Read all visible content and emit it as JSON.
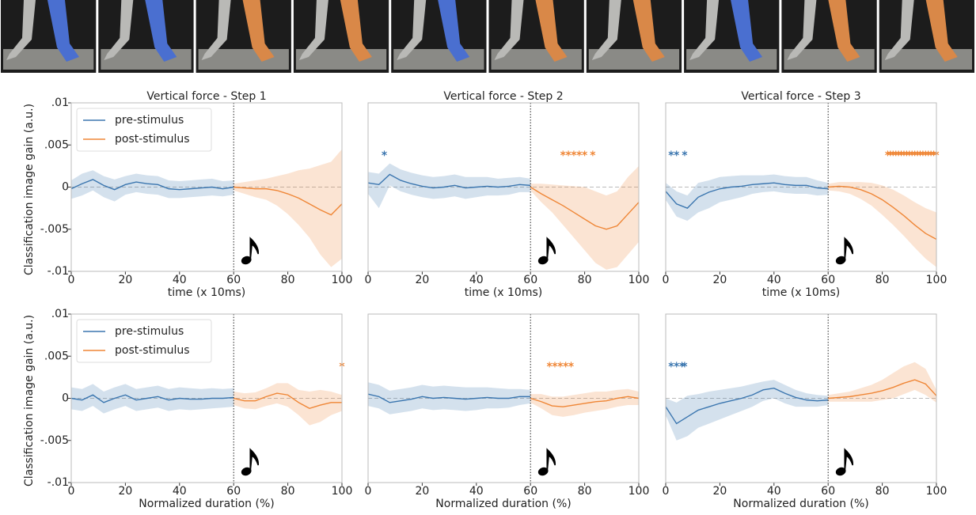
{
  "chart_data": [
    {
      "type": "line",
      "title": "Vertical force - Step 1",
      "xlabel": "time (x 10ms)",
      "ylabel": "Classification image gain (a.u.)",
      "xlim": [
        0,
        100
      ],
      "xticks": [
        0,
        20,
        40,
        60,
        80,
        100
      ],
      "ylim": [
        -0.01,
        0.01
      ],
      "yticks": [
        {
          "value": 0.01,
          "label": ".01"
        },
        {
          "value": 0.005,
          "label": ".005"
        },
        0,
        {
          "value": -0.005,
          "label": "-.005"
        },
        {
          "value": -0.01,
          "label": "-.01"
        }
      ],
      "legend": "upper left",
      "stimulus_x": 60,
      "zero_line": true,
      "series": [
        {
          "name": "pre-stimulus",
          "color": "#3b76af",
          "x": [
            0,
            4,
            8,
            12,
            16,
            20,
            24,
            28,
            32,
            36,
            40,
            44,
            48,
            52,
            56,
            60
          ],
          "values": [
            -0.0002,
            0.0004,
            0.0009,
            0.0002,
            -0.0003,
            0.0003,
            0.0006,
            0.0004,
            0.0003,
            -0.0002,
            -0.0003,
            -0.0002,
            -0.0001,
            0,
            -0.0002,
            0
          ],
          "lower": [
            -0.0014,
            -0.001,
            -0.0004,
            -0.0012,
            -0.0017,
            -0.0009,
            -0.0006,
            -0.0008,
            -0.0009,
            -0.0013,
            -0.0013,
            -0.0012,
            -0.0011,
            -0.001,
            -0.0011,
            -0.0009
          ],
          "upper": [
            0.0008,
            0.0016,
            0.002,
            0.0013,
            0.0009,
            0.0013,
            0.0016,
            0.0014,
            0.0013,
            0.0008,
            0.0007,
            0.0008,
            0.0009,
            0.001,
            0.0007,
            0.0008
          ]
        },
        {
          "name": "post-stimulus",
          "color": "#ef8636",
          "x": [
            60,
            64,
            68,
            72,
            76,
            80,
            84,
            88,
            92,
            96,
            100
          ],
          "values": [
            0,
            -0.0001,
            -0.0002,
            -0.0002,
            -0.0004,
            -0.0008,
            -0.0013,
            -0.002,
            -0.0027,
            -0.0033,
            -0.002
          ],
          "lower": [
            -0.0004,
            -0.0008,
            -0.0012,
            -0.0015,
            -0.0022,
            -0.0032,
            -0.0045,
            -0.006,
            -0.008,
            -0.0095,
            -0.0085
          ],
          "upper": [
            0.0004,
            0.0006,
            0.0008,
            0.001,
            0.0013,
            0.0016,
            0.002,
            0.0022,
            0.0026,
            0.003,
            0.0045
          ]
        }
      ],
      "significance": []
    },
    {
      "type": "line",
      "title": "Vertical force - Step 2",
      "xlabel": "time (x 10ms)",
      "xlim": [
        0,
        100
      ],
      "xticks": [
        0,
        20,
        40,
        60,
        80,
        100
      ],
      "ylim": [
        -0.01,
        0.01
      ],
      "stimulus_x": 60,
      "zero_line": true,
      "series": [
        {
          "color": "#3b76af",
          "x": [
            0,
            4,
            8,
            12,
            16,
            20,
            24,
            28,
            32,
            36,
            40,
            44,
            48,
            52,
            56,
            60
          ],
          "values": [
            0.0005,
            0.0003,
            0.0015,
            0.0008,
            0.0004,
            0.0001,
            -0.0001,
            0,
            0.0002,
            -0.0001,
            0,
            0.0001,
            0,
            0.0001,
            0.0003,
            0.0002
          ],
          "lower": [
            -0.0008,
            -0.0025,
            0.0002,
            -0.0005,
            -0.0009,
            -0.0012,
            -0.0014,
            -0.0013,
            -0.0011,
            -0.0014,
            -0.0012,
            -0.001,
            -0.001,
            -0.0009,
            -0.0006,
            -0.0006
          ],
          "upper": [
            0.0018,
            0.0016,
            0.0028,
            0.0021,
            0.0017,
            0.0014,
            0.0012,
            0.0013,
            0.0015,
            0.0012,
            0.0012,
            0.0012,
            0.001,
            0.0011,
            0.0012,
            0.001
          ]
        },
        {
          "color": "#ef8636",
          "x": [
            60,
            64,
            68,
            72,
            76,
            80,
            84,
            88,
            92,
            96,
            100
          ],
          "values": [
            0,
            -0.0008,
            -0.0015,
            -0.0022,
            -0.003,
            -0.0038,
            -0.0046,
            -0.005,
            -0.0046,
            -0.0032,
            -0.0018
          ],
          "lower": [
            -0.0004,
            -0.0018,
            -0.003,
            -0.0045,
            -0.006,
            -0.0075,
            -0.009,
            -0.0098,
            -0.0095,
            -0.008,
            -0.0065
          ],
          "upper": [
            0.0004,
            0.0004,
            0.0003,
            0.0002,
            0.0001,
            0,
            -0.0005,
            -0.001,
            -0.0005,
            0.0012,
            0.0025
          ]
        }
      ],
      "significance": [
        {
          "color": "#3b76af",
          "y": 0.004,
          "x": [
            6
          ]
        },
        {
          "color": "#ef8636",
          "y": 0.004,
          "x": [
            72,
            74,
            76,
            78,
            80,
            83
          ]
        }
      ]
    },
    {
      "type": "line",
      "title": "Vertical force - Step 3",
      "xlabel": "time (x 10ms)",
      "xlim": [
        0,
        100
      ],
      "xticks": [
        0,
        20,
        40,
        60,
        80,
        100
      ],
      "ylim": [
        -0.01,
        0.01
      ],
      "stimulus_x": 60,
      "zero_line": true,
      "series": [
        {
          "color": "#3b76af",
          "x": [
            0,
            4,
            8,
            12,
            16,
            20,
            24,
            28,
            32,
            36,
            40,
            44,
            48,
            52,
            56,
            60
          ],
          "values": [
            -0.0005,
            -0.002,
            -0.0025,
            -0.0012,
            -0.0006,
            -0.0002,
            0,
            0.0001,
            0.0003,
            0.0004,
            0.0005,
            0.0003,
            0.0002,
            0.0002,
            -0.0001,
            -0.0002
          ],
          "lower": [
            -0.0015,
            -0.0035,
            -0.004,
            -0.003,
            -0.0025,
            -0.0018,
            -0.0015,
            -0.0012,
            -0.0008,
            -0.0006,
            -0.0005,
            -0.0007,
            -0.0008,
            -0.0008,
            -0.001,
            -0.0009
          ],
          "upper": [
            0.0005,
            -0.0005,
            -0.001,
            0.0005,
            0.0008,
            0.0012,
            0.0013,
            0.0014,
            0.0014,
            0.0014,
            0.0015,
            0.0013,
            0.0012,
            0.0012,
            0.0008,
            0.0005
          ]
        },
        {
          "color": "#ef8636",
          "x": [
            60,
            64,
            68,
            72,
            76,
            80,
            84,
            88,
            92,
            96,
            100
          ],
          "values": [
            0,
            0.0001,
            0,
            -0.0003,
            -0.0008,
            -0.0015,
            -0.0024,
            -0.0034,
            -0.0045,
            -0.0055,
            -0.0062
          ],
          "lower": [
            -0.0004,
            -0.0005,
            -0.0008,
            -0.0014,
            -0.0022,
            -0.0033,
            -0.0045,
            -0.0058,
            -0.0072,
            -0.0085,
            -0.0095
          ],
          "upper": [
            0.0004,
            0.0006,
            0.0006,
            0.0006,
            0.0005,
            0.0002,
            -0.0003,
            -0.001,
            -0.0018,
            -0.0025,
            -0.003
          ]
        }
      ],
      "significance": [
        {
          "color": "#3b76af",
          "y": 0.004,
          "x": [
            2,
            4,
            7
          ]
        },
        {
          "color": "#ef8636",
          "y": 0.004,
          "x": [
            82,
            83,
            84,
            85,
            86,
            87,
            88,
            89,
            90,
            91,
            92,
            93,
            94,
            95,
            96,
            97,
            98,
            99,
            100
          ]
        }
      ]
    },
    {
      "type": "line",
      "xlabel": "Normalized duration (%)",
      "ylabel": "Classification image gain (a.u.)",
      "xlim": [
        0,
        100
      ],
      "xticks": [
        0,
        20,
        40,
        60,
        80,
        100
      ],
      "ylim": [
        -0.01,
        0.01
      ],
      "yticks": [
        {
          "value": 0.01,
          "label": ".01"
        },
        {
          "value": 0.005,
          "label": ".005"
        },
        0,
        {
          "value": -0.005,
          "label": "-.005"
        },
        {
          "value": -0.01,
          "label": "-.01"
        }
      ],
      "legend": "upper left",
      "stimulus_x": 60,
      "zero_line": true,
      "series": [
        {
          "name": "pre-stimulus",
          "color": "#3b76af",
          "x": [
            0,
            4,
            8,
            12,
            16,
            20,
            24,
            28,
            32,
            36,
            40,
            44,
            48,
            52,
            56,
            60
          ],
          "values": [
            0,
            -0.0002,
            0.0004,
            -0.0005,
            0,
            0.0004,
            -0.0002,
            0,
            0.0002,
            -0.0002,
            0,
            -0.0001,
            -0.0001,
            0,
            0,
            0.0001
          ],
          "lower": [
            -0.0013,
            -0.0015,
            -0.0009,
            -0.0018,
            -0.0013,
            -0.0009,
            -0.0015,
            -0.0013,
            -0.0011,
            -0.0015,
            -0.0013,
            -0.0014,
            -0.0013,
            -0.0012,
            -0.0011,
            -0.001
          ],
          "upper": [
            0.0013,
            0.0011,
            0.0017,
            0.0008,
            0.0013,
            0.0017,
            0.0011,
            0.0013,
            0.0015,
            0.0011,
            0.0013,
            0.0012,
            0.0011,
            0.0012,
            0.0011,
            0.0012
          ]
        },
        {
          "name": "post-stimulus",
          "color": "#ef8636",
          "x": [
            60,
            64,
            68,
            72,
            76,
            80,
            84,
            88,
            92,
            96,
            100
          ],
          "values": [
            0,
            -0.0003,
            -0.0003,
            0.0002,
            0.0006,
            0.0004,
            -0.0005,
            -0.0012,
            -0.0008,
            -0.0005,
            -0.0005
          ],
          "lower": [
            -0.0008,
            -0.0012,
            -0.0013,
            -0.0009,
            -0.0006,
            -0.001,
            -0.002,
            -0.0032,
            -0.0028,
            -0.002,
            -0.0015
          ],
          "upper": [
            0.0008,
            0.0006,
            0.0007,
            0.0012,
            0.0018,
            0.0018,
            0.001,
            0.0008,
            0.001,
            0.0008,
            0.0004
          ]
        }
      ],
      "significance": [
        {
          "color": "#ef8636",
          "y": 0.004,
          "x": [
            100
          ]
        }
      ]
    },
    {
      "type": "line",
      "xlabel": "Normalized duration (%)",
      "xlim": [
        0,
        100
      ],
      "xticks": [
        0,
        20,
        40,
        60,
        80,
        100
      ],
      "ylim": [
        -0.01,
        0.01
      ],
      "stimulus_x": 60,
      "zero_line": true,
      "series": [
        {
          "color": "#3b76af",
          "x": [
            0,
            4,
            8,
            12,
            16,
            20,
            24,
            28,
            32,
            36,
            40,
            44,
            48,
            52,
            56,
            60
          ],
          "values": [
            0.0005,
            0.0002,
            -0.0005,
            -0.0003,
            -0.0001,
            0.0002,
            0,
            0.0001,
            0,
            -0.0001,
            0,
            0.0001,
            0,
            0,
            0.0002,
            0.0002
          ],
          "lower": [
            -0.0009,
            -0.0012,
            -0.0019,
            -0.0017,
            -0.0015,
            -0.0012,
            -0.0014,
            -0.0013,
            -0.0014,
            -0.0015,
            -0.0014,
            -0.0012,
            -0.0012,
            -0.0011,
            -0.0008,
            -0.0006
          ],
          "upper": [
            0.0019,
            0.0016,
            0.0009,
            0.0011,
            0.0013,
            0.0016,
            0.0014,
            0.0015,
            0.0014,
            0.0013,
            0.0013,
            0.0013,
            0.0012,
            0.0011,
            0.0011,
            0.001
          ]
        },
        {
          "color": "#ef8636",
          "x": [
            60,
            64,
            68,
            72,
            76,
            80,
            84,
            88,
            92,
            96,
            100
          ],
          "values": [
            0,
            -0.0004,
            -0.0009,
            -0.001,
            -0.0008,
            -0.0006,
            -0.0004,
            -0.0003,
            0,
            0.0002,
            0
          ],
          "lower": [
            -0.0005,
            -0.0012,
            -0.002,
            -0.0022,
            -0.002,
            -0.0017,
            -0.0015,
            -0.0013,
            -0.001,
            -0.0008,
            -0.0008
          ],
          "upper": [
            0.0005,
            0.0005,
            0.0002,
            0.0002,
            0.0004,
            0.0006,
            0.0008,
            0.0008,
            0.001,
            0.0011,
            0.0008
          ]
        }
      ],
      "significance": [
        {
          "color": "#ef8636",
          "y": 0.004,
          "x": [
            67,
            69,
            71,
            73,
            75
          ]
        }
      ]
    },
    {
      "type": "line",
      "xlabel": "Normalized duration (%)",
      "xlim": [
        0,
        100
      ],
      "xticks": [
        0,
        20,
        40,
        60,
        80,
        100
      ],
      "ylim": [
        -0.01,
        0.01
      ],
      "stimulus_x": 60,
      "zero_line": true,
      "series": [
        {
          "color": "#3b76af",
          "x": [
            0,
            4,
            8,
            12,
            16,
            20,
            24,
            28,
            32,
            36,
            40,
            44,
            48,
            52,
            56,
            60
          ],
          "values": [
            -0.001,
            -0.003,
            -0.0022,
            -0.0014,
            -0.001,
            -0.0006,
            -0.0003,
            0,
            0.0004,
            0.001,
            0.0012,
            0.0006,
            0.0001,
            -0.0002,
            -0.0003,
            -0.0002
          ],
          "lower": [
            -0.002,
            -0.005,
            -0.0045,
            -0.0035,
            -0.003,
            -0.0025,
            -0.002,
            -0.0015,
            -0.001,
            -0.0003,
            0,
            -0.0006,
            -0.001,
            -0.001,
            -0.001,
            -0.0008
          ],
          "upper": [
            0,
            -0.0005,
            0.0003,
            0.0005,
            0.0008,
            0.001,
            0.0012,
            0.0014,
            0.0017,
            0.002,
            0.0022,
            0.0016,
            0.001,
            0.0006,
            0.0004,
            0.0003
          ]
        },
        {
          "color": "#ef8636",
          "x": [
            60,
            64,
            68,
            72,
            76,
            80,
            84,
            88,
            92,
            96,
            100
          ],
          "values": [
            0,
            0.0001,
            0.0002,
            0.0004,
            0.0006,
            0.0009,
            0.0013,
            0.0018,
            0.0022,
            0.0017,
            0.0003
          ],
          "lower": [
            -0.0004,
            -0.0004,
            -0.0004,
            -0.0004,
            -0.0004,
            -0.0002,
            0,
            0.0005,
            0.001,
            0.0004,
            -0.0005
          ],
          "upper": [
            0.0004,
            0.0006,
            0.0008,
            0.0012,
            0.0016,
            0.0022,
            0.003,
            0.0038,
            0.0043,
            0.0035,
            0.001
          ]
        }
      ],
      "significance": [
        {
          "color": "#3b76af",
          "y": 0.004,
          "x": [
            2,
            4,
            6,
            7
          ]
        }
      ]
    }
  ]
}
